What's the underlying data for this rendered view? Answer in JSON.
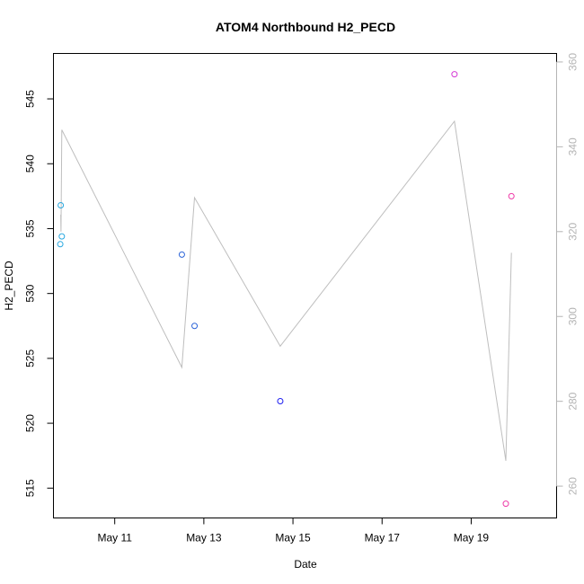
{
  "chart_data": {
    "type": "line",
    "title": "ATOM4 Northbound H2_PECD",
    "xlabel": "Date",
    "ylabel": "H2_PECD",
    "xlim": [
      "2023-05-09T15:00",
      "2023-05-20T22:00"
    ],
    "ylim": [
      512.7,
      548.5
    ],
    "y2lim": [
      252.5,
      362.0
    ],
    "x_ticks": [
      {
        "date": "2023-05-11",
        "label": "May 11"
      },
      {
        "date": "2023-05-13",
        "label": "May 13"
      },
      {
        "date": "2023-05-15",
        "label": "May 15"
      },
      {
        "date": "2023-05-17",
        "label": "May 17"
      },
      {
        "date": "2023-05-19",
        "label": "May 19"
      }
    ],
    "y_ticks": [
      515,
      520,
      525,
      530,
      535,
      540,
      545
    ],
    "y2_ticks": [
      260,
      280,
      300,
      320,
      340,
      360
    ],
    "grid": false,
    "legend": "none",
    "points": [
      {
        "x": "2023-05-09T18:40",
        "y": 533.8,
        "color": "#29a8e0"
      },
      {
        "x": "2023-05-09T18:55",
        "y": 536.8,
        "color": "#29a8e0"
      },
      {
        "x": "2023-05-09T19:30",
        "y": 534.4,
        "color": "#29a8e0"
      },
      {
        "x": "2023-05-12T12:10",
        "y": 533.0,
        "color": "#2c64d8"
      },
      {
        "x": "2023-05-12T19:00",
        "y": 527.5,
        "color": "#2c64d8"
      },
      {
        "x": "2023-05-14T17:10",
        "y": 521.7,
        "color": "#1f1ff0"
      },
      {
        "x": "2023-05-18T15:00",
        "y": 546.9,
        "color": "#d53ad5"
      },
      {
        "x": "2023-05-19T18:40",
        "y": 513.8,
        "color": "#ee3aa8"
      },
      {
        "x": "2023-05-19T21:40",
        "y": 537.5,
        "color": "#ee3aa8"
      }
    ],
    "series": [
      {
        "axis": "right",
        "color": "#bebebe",
        "x": [
          "2023-05-09T18:55",
          "2023-05-09T19:05",
          "2023-05-09T19:30",
          "2023-05-12T12:10",
          "2023-05-12T19:00",
          "2023-05-14T17:10",
          "2023-05-18T15:00",
          "2023-05-19T18:40",
          "2023-05-19T21:40"
        ],
        "y": [
          324,
          320,
          344,
          288,
          328,
          293,
          346,
          266,
          315
        ]
      }
    ]
  }
}
